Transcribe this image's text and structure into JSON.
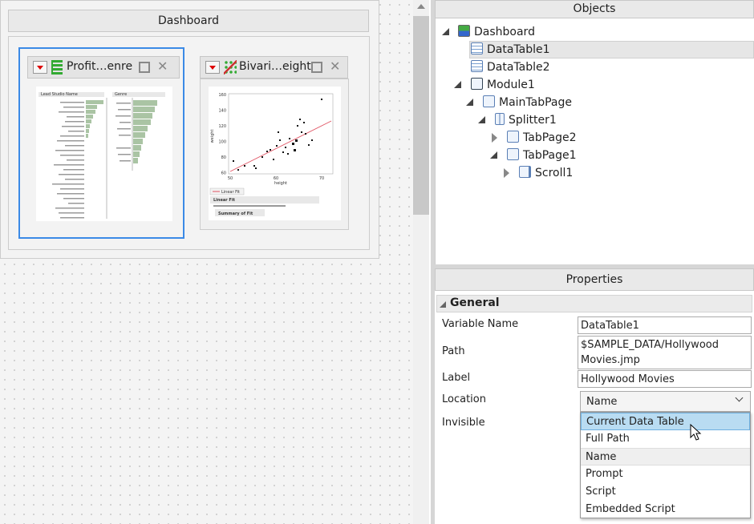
{
  "dashboard": {
    "title": "Dashboard",
    "tiles": [
      {
        "title": "Profit…enre",
        "headers": [
          "Lead Studio Name",
          "Genre"
        ]
      },
      {
        "title": "Bivari…eight",
        "y_label": "weight",
        "x_label": "height",
        "yticks": [
          160,
          140,
          120,
          100,
          80,
          60
        ],
        "xticks": [
          50,
          60,
          70
        ],
        "legend": "Linear Fit",
        "sections": [
          "Linear Fit",
          "Summary of Fit"
        ]
      }
    ]
  },
  "objects": {
    "title": "Objects",
    "nodes": [
      "Dashboard",
      "DataTable1",
      "DataTable2",
      "Module1",
      "MainTabPage",
      "Splitter1",
      "TabPage2",
      "TabPage1",
      "Scroll1"
    ]
  },
  "properties": {
    "title": "Properties",
    "section": "General",
    "rows": [
      {
        "label": "Variable Name",
        "value": "DataTable1"
      },
      {
        "label": "Path",
        "value": "$SAMPLE_DATA/Hollywood Movies.jmp"
      },
      {
        "label": "Label",
        "value": "Hollywood Movies"
      },
      {
        "label": "Location",
        "value": "Name"
      },
      {
        "label": "Invisible"
      }
    ],
    "dropdown": [
      "Current Data Table",
      "Full Path",
      "Name",
      "Prompt",
      "Script",
      "Embedded Script"
    ]
  }
}
